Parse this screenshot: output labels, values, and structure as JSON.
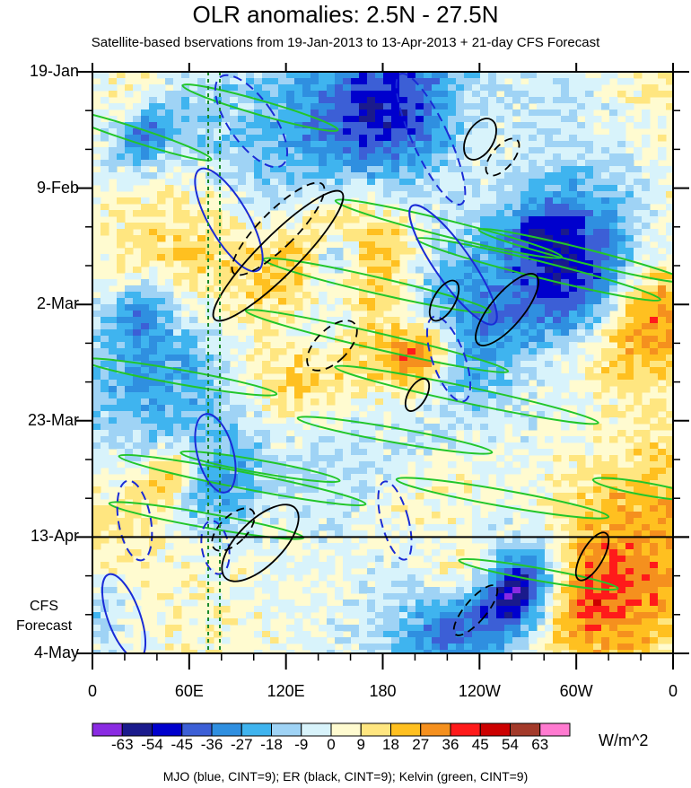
{
  "chart_data": {
    "type": "heatmap",
    "title": "OLR anomalies: 2.5N - 27.5N",
    "subtitle": "Satellite-based bservations from 19-Jan-2013 to 13-Apr-2013 + 21-day CFS Forecast",
    "x_ticks": [
      "0",
      "60E",
      "120E",
      "180",
      "120W",
      "60W",
      "0"
    ],
    "y_ticks": [
      "19-Jan",
      "9-Feb",
      "2-Mar",
      "23-Mar",
      "13-Apr",
      "4-May"
    ],
    "forecast_label": [
      "CFS",
      "Forecast"
    ],
    "forecast_start": "13-Apr",
    "colorbar": {
      "levels": [
        "-63",
        "-54",
        "-45",
        "-36",
        "-27",
        "-18",
        "-9",
        "0",
        "9",
        "18",
        "27",
        "36",
        "45",
        "54",
        "63"
      ],
      "colors": [
        "#8a2be2",
        "#1a1a8c",
        "#0000cd",
        "#3c5fd6",
        "#2f8fe0",
        "#3fb4ef",
        "#9fd3f5",
        "#d8f3fb",
        "#fffbd0",
        "#ffe680",
        "#ffc020",
        "#f5901e",
        "#ff1a1a",
        "#cc0000",
        "#a33a2a",
        "#ff7ad0"
      ],
      "units": "W/m^2"
    },
    "footer": "MJO (blue, CINT=9); ER (black, CINT=9); Kelvin (green, CINT=9)",
    "contours": {
      "mjo_color": "#1a2bd6",
      "er_color": "#000000",
      "kelvin_color": "#22c62a"
    }
  }
}
